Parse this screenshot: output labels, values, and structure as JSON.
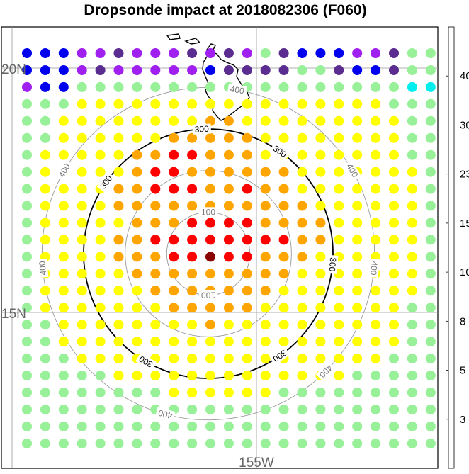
{
  "chart_data": {
    "type": "scatter",
    "title": "Dropsonde impact at 2018082306 (F060)",
    "geo_labels": {
      "lat_north": "20N",
      "lat_south": "15N",
      "lon": "155W"
    },
    "contour_rings": [
      {
        "value": 100,
        "label": "100",
        "style": "gray"
      },
      {
        "value": 200,
        "label": "",
        "style": "gray"
      },
      {
        "value": 300,
        "label": "300",
        "style": "black"
      },
      {
        "value": 400,
        "label": "400",
        "style": "gray"
      }
    ],
    "colorbar": {
      "tick_labels": [
        "3",
        "5",
        "8",
        "10",
        "15",
        "23",
        "30",
        "40"
      ],
      "colors": [
        "#5b2d90",
        "#a020f0",
        "#0000ee",
        "#00eeee",
        "#98f098",
        "#ffff00",
        "#ffa500",
        "#ff0000",
        "#8b0000"
      ]
    },
    "grid": {
      "rows": 24,
      "cols": 23,
      "value_scale": [
        1,
        4,
        7,
        9,
        12,
        19,
        27,
        35,
        45
      ],
      "class_rows": [
        "22211011101014022211044",
        "22210111112000044022044",
        "12244444444444444444433",
        "44455555555555555555444",
        "44555555556655555555544",
        "44555555666665555555544",
        "45555566776665555555544",
        "45555567766666655555554",
        "45555667776676655555554",
        "45555666666666665555554",
        "45555566677776666555554",
        "45555667777777766555554",
        "45555666778776665555554",
        "45555566666666655555554",
        "45555556666666555555554",
        "45555555666665555555544",
        "44555555556555555555544",
        "44555555555555555555544",
        "44455555555555555555444",
        "44444555555555555544444",
        "44444444555555444444444",
        "44444444444444444444444",
        "44444444444444444444444",
        "44444444444444444444444"
      ]
    }
  }
}
